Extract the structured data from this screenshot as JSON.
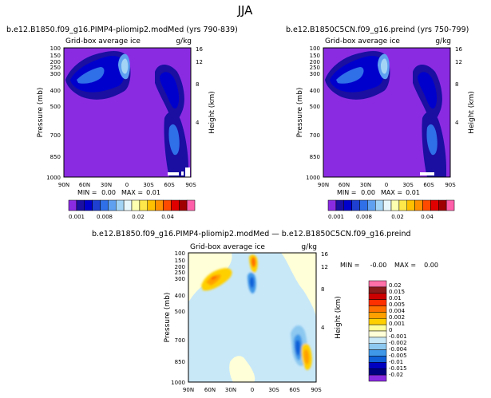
{
  "figure_title": "JJA",
  "chart_data": [
    {
      "type": "heatmap",
      "title": "b.e12.B1850.f09_g16.PIMP4-pliomip2.modMed  (yrs 790-839)",
      "subtitle_left": "Grid-box average ice",
      "subtitle_right": "g/kg",
      "xlabel": "",
      "ylabel": "Pressure (mb)",
      "ylabel_right": "Height (km)",
      "x_ticks": [
        "90N",
        "60N",
        "30N",
        "0",
        "30S",
        "60S",
        "90S"
      ],
      "y_ticks": [
        "100",
        "150",
        "200",
        "250",
        "300",
        "400",
        "500",
        "700",
        "850",
        "1000"
      ],
      "right_ticks": [
        "16",
        "12",
        "8",
        "4"
      ],
      "stats": {
        "min_label": "MIN =",
        "min": "0.00",
        "max_label": "MAX =",
        "max": "0.01"
      },
      "colorbar_levels": [
        "0.001",
        "0.008",
        "0.02",
        "0.04"
      ],
      "colorbar_colors": [
        "#8a2be2",
        "#1a0fa0",
        "#0000cd",
        "#1e3fd0",
        "#2f6fe8",
        "#5fa0f0",
        "#a4d4f5",
        "#e8f7fb",
        "#ffffb0",
        "#ffe84a",
        "#ffc000",
        "#ff9000",
        "#ff4a00",
        "#e00000",
        "#a00000",
        "#ff5fa8"
      ]
    },
    {
      "type": "heatmap",
      "title": "b.e12.B1850C5CN.f09_g16.preind  (yrs 750-799)",
      "subtitle_left": "Grid-box average ice",
      "subtitle_right": "g/kg",
      "xlabel": "",
      "ylabel": "Pressure (mb)",
      "ylabel_right": "Height (km)",
      "x_ticks": [
        "90N",
        "60N",
        "30N",
        "0",
        "30S",
        "60S",
        "90S"
      ],
      "y_ticks": [
        "100",
        "150",
        "200",
        "250",
        "300",
        "400",
        "500",
        "700",
        "850",
        "1000"
      ],
      "right_ticks": [
        "16",
        "12",
        "8",
        "4"
      ],
      "stats": {
        "min_label": "MIN =",
        "min": "0.00",
        "max_label": "MAX =",
        "max": "0.01"
      },
      "colorbar_levels": [
        "0.001",
        "0.008",
        "0.02",
        "0.04"
      ],
      "colorbar_colors": [
        "#8a2be2",
        "#1a0fa0",
        "#0000cd",
        "#1e3fd0",
        "#2f6fe8",
        "#5fa0f0",
        "#a4d4f5",
        "#e8f7fb",
        "#ffffb0",
        "#ffe84a",
        "#ffc000",
        "#ff9000",
        "#ff4a00",
        "#e00000",
        "#a00000",
        "#ff5fa8"
      ]
    },
    {
      "type": "heatmap",
      "title": "b.e12.B1850.f09_g16.PIMP4-pliomip2.modMed  —  b.e12.B1850C5CN.f09_g16.preind",
      "subtitle_left": "Grid-box average ice",
      "subtitle_right": "g/kg",
      "xlabel": "",
      "ylabel": "Pressure (mb)",
      "ylabel_right": "Height (km)",
      "x_ticks": [
        "90N",
        "60N",
        "30N",
        "0",
        "30S",
        "60S",
        "90S"
      ],
      "y_ticks": [
        "100",
        "150",
        "200",
        "250",
        "300",
        "400",
        "500",
        "700",
        "850",
        "1000"
      ],
      "right_ticks": [
        "16",
        "12",
        "8",
        "4"
      ],
      "stats": {
        "min_label": "MIN =",
        "min": "-0.00",
        "max_label": "MAX =",
        "max": "0.00"
      },
      "colorbar_levels": [
        "0.02",
        "0.015",
        "0.01",
        "0.005",
        "0.004",
        "0.002",
        "0.001",
        "0",
        "-0.001",
        "-0.002",
        "-0.004",
        "-0.005",
        "-0.01",
        "-0.015",
        "-0.02"
      ],
      "colorbar_colors": [
        "#ff6fa8",
        "#8b1a1a",
        "#cc0000",
        "#ff3000",
        "#ff7000",
        "#ffa000",
        "#ffd000",
        "#ffff9a",
        "#ffffd8",
        "#c8e8f8",
        "#8cc8f0",
        "#4098e8",
        "#1060d8",
        "#0000c0",
        "#000080",
        "#8a2be2"
      ]
    }
  ]
}
